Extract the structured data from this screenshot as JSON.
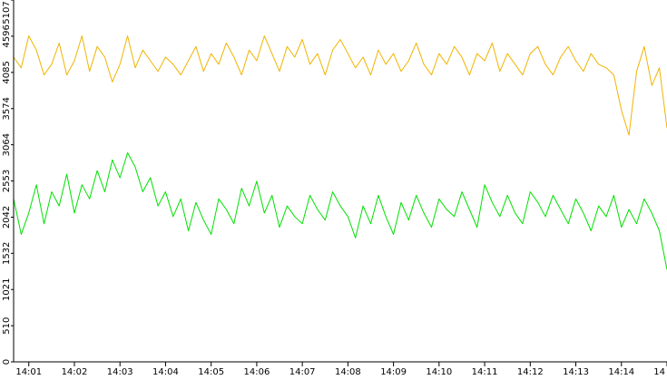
{
  "chart_data": {
    "type": "line",
    "title": "",
    "xlabel": "",
    "ylabel": "",
    "ylim": [
      0,
      5107
    ],
    "yticks": [
      0,
      510,
      1021,
      1532,
      2042,
      2553,
      3064,
      3574,
      4085,
      4596,
      5107
    ],
    "yticks_labels": [
      "0",
      "510",
      "1021",
      "1532",
      "2042",
      "2553",
      "3064",
      "3574",
      "4085",
      "4596",
      "5107"
    ],
    "xlim": [
      "14:00:40",
      "14:15:00"
    ],
    "xticks_labels": [
      "14:01",
      "14:02",
      "14:03",
      "14:04",
      "14:05",
      "14:06",
      "14:07",
      "14:08",
      "14:09",
      "14:10",
      "14:11",
      "14:12",
      "14:13",
      "14:14",
      "14"
    ],
    "grid": false,
    "legend": "none",
    "series": [
      {
        "color": "#f0b400",
        "x": [
          "14:00:40",
          "14:00:50",
          "14:01:00",
          "14:01:10",
          "14:01:20",
          "14:01:30",
          "14:01:40",
          "14:01:50",
          "14:02:00",
          "14:02:10",
          "14:02:20",
          "14:02:30",
          "14:02:40",
          "14:02:50",
          "14:03:00",
          "14:03:10",
          "14:03:20",
          "14:03:30",
          "14:03:40",
          "14:03:50",
          "14:04:00",
          "14:04:10",
          "14:04:20",
          "14:04:30",
          "14:04:40",
          "14:04:50",
          "14:05:00",
          "14:05:10",
          "14:05:20",
          "14:05:30",
          "14:05:40",
          "14:05:50",
          "14:06:00",
          "14:06:10",
          "14:06:20",
          "14:06:30",
          "14:06:40",
          "14:06:50",
          "14:07:00",
          "14:07:10",
          "14:07:20",
          "14:07:30",
          "14:07:40",
          "14:07:50",
          "14:08:00",
          "14:08:10",
          "14:08:20",
          "14:08:30",
          "14:08:40",
          "14:08:50",
          "14:09:00",
          "14:09:10",
          "14:09:20",
          "14:09:30",
          "14:09:40",
          "14:09:50",
          "14:10:00",
          "14:10:10",
          "14:10:20",
          "14:10:30",
          "14:10:40",
          "14:10:50",
          "14:11:00",
          "14:11:10",
          "14:11:20",
          "14:11:30",
          "14:11:40",
          "14:11:50",
          "14:12:00",
          "14:12:10",
          "14:12:20",
          "14:12:30",
          "14:12:40",
          "14:12:50",
          "14:13:00",
          "14:13:10",
          "14:13:20",
          "14:13:30",
          "14:13:40",
          "14:13:50",
          "14:14:00",
          "14:14:10",
          "14:14:20",
          "14:14:30",
          "14:14:40",
          "14:14:50",
          "14:15:00"
        ],
        "values": [
          4300,
          4150,
          4600,
          4400,
          4050,
          4200,
          4500,
          4050,
          4250,
          4600,
          4100,
          4450,
          4300,
          3950,
          4200,
          4600,
          4150,
          4400,
          4250,
          4100,
          4300,
          4200,
          4050,
          4250,
          4450,
          4100,
          4350,
          4200,
          4500,
          4300,
          4050,
          4400,
          4250,
          4600,
          4350,
          4100,
          4450,
          4300,
          4550,
          4200,
          4350,
          4050,
          4400,
          4550,
          4350,
          4150,
          4300,
          4050,
          4400,
          4200,
          4350,
          4100,
          4250,
          4500,
          4200,
          4050,
          4350,
          4200,
          4450,
          4300,
          4050,
          4350,
          4250,
          4500,
          4100,
          4350,
          4200,
          4050,
          4350,
          4450,
          4200,
          4050,
          4300,
          4450,
          4250,
          4100,
          4350,
          4200,
          4150,
          4050,
          3550,
          3200,
          4100,
          4450,
          3900,
          4150,
          3300
        ]
      },
      {
        "color": "#00e000",
        "x": [
          "14:00:40",
          "14:00:50",
          "14:01:00",
          "14:01:10",
          "14:01:20",
          "14:01:30",
          "14:01:40",
          "14:01:50",
          "14:02:00",
          "14:02:10",
          "14:02:20",
          "14:02:30",
          "14:02:40",
          "14:02:50",
          "14:03:00",
          "14:03:10",
          "14:03:20",
          "14:03:30",
          "14:03:40",
          "14:03:50",
          "14:04:00",
          "14:04:10",
          "14:04:20",
          "14:04:30",
          "14:04:40",
          "14:04:50",
          "14:05:00",
          "14:05:10",
          "14:05:20",
          "14:05:30",
          "14:05:40",
          "14:05:50",
          "14:06:00",
          "14:06:10",
          "14:06:20",
          "14:06:30",
          "14:06:40",
          "14:06:50",
          "14:07:00",
          "14:07:10",
          "14:07:20",
          "14:07:30",
          "14:07:40",
          "14:07:50",
          "14:08:00",
          "14:08:10",
          "14:08:20",
          "14:08:30",
          "14:08:40",
          "14:08:50",
          "14:09:00",
          "14:09:10",
          "14:09:20",
          "14:09:30",
          "14:09:40",
          "14:09:50",
          "14:10:00",
          "14:10:10",
          "14:10:20",
          "14:10:30",
          "14:10:40",
          "14:10:50",
          "14:11:00",
          "14:11:10",
          "14:11:20",
          "14:11:30",
          "14:11:40",
          "14:11:50",
          "14:12:00",
          "14:12:10",
          "14:12:20",
          "14:12:30",
          "14:12:40",
          "14:12:50",
          "14:13:00",
          "14:13:10",
          "14:13:20",
          "14:13:30",
          "14:13:40",
          "14:13:50",
          "14:14:00",
          "14:14:10",
          "14:14:20",
          "14:14:30",
          "14:14:40",
          "14:14:50",
          "14:15:00"
        ],
        "values": [
          2300,
          1800,
          2100,
          2500,
          1950,
          2400,
          2200,
          2650,
          2100,
          2500,
          2300,
          2700,
          2400,
          2850,
          2600,
          2950,
          2750,
          2400,
          2600,
          2200,
          2400,
          2050,
          2300,
          1850,
          2250,
          2000,
          1800,
          2300,
          2150,
          1950,
          2450,
          2200,
          2550,
          2100,
          2350,
          1900,
          2200,
          2050,
          1950,
          2350,
          2150,
          2000,
          2400,
          2200,
          2050,
          1750,
          2200,
          1950,
          2350,
          2050,
          1800,
          2250,
          2000,
          2350,
          2100,
          1900,
          2300,
          2150,
          2050,
          2400,
          2150,
          1900,
          2500,
          2250,
          2050,
          2350,
          2100,
          1950,
          2400,
          2250,
          2050,
          2350,
          2150,
          1950,
          2300,
          2100,
          1850,
          2200,
          2050,
          2350,
          1900,
          2150,
          1950,
          2300,
          2100,
          1850,
          1300
        ]
      }
    ]
  }
}
